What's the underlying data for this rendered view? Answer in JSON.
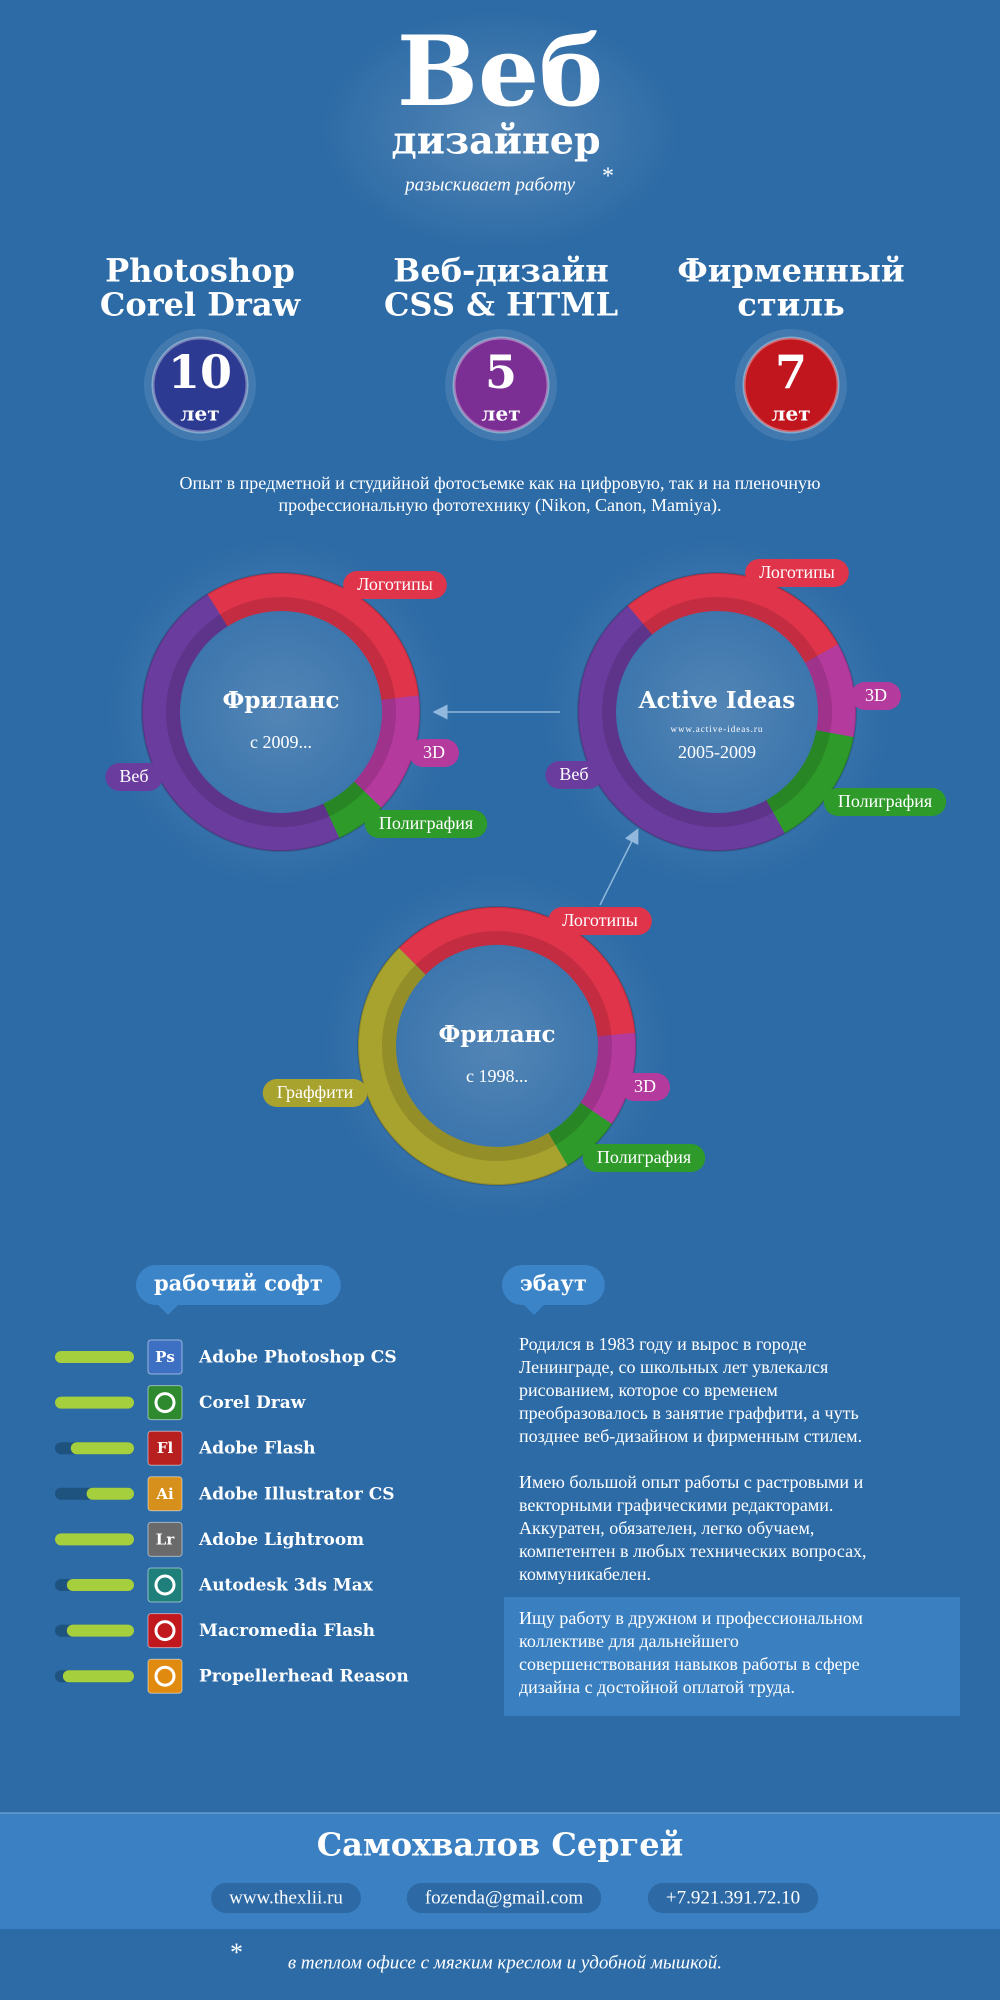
{
  "header": {
    "title": "Веб",
    "subtitle": "дизайнер",
    "tagline": "разыскивает работу",
    "asterisk": "*"
  },
  "experience": [
    {
      "lines": [
        "Photoshop",
        "Corel Draw"
      ],
      "years": 10,
      "unit": "лет",
      "color": "#2c3a92"
    },
    {
      "lines": [
        "Веб-дизайн",
        "CSS & HTML"
      ],
      "years": 5,
      "unit": "лет",
      "color": "#7b2f95"
    },
    {
      "lines": [
        "Фирменный",
        "стиль"
      ],
      "years": 7,
      "unit": "лет",
      "color": "#c2161f"
    }
  ],
  "note": [
    "Опыт в предметной и студийной фотосъемке как на цифровую, так и на пленочную",
    "профессиональную фототехнику (Nikon, Canon, Mamiya)."
  ],
  "donuts": [
    {
      "title": "Фриланс",
      "subtitle": "с 2009...",
      "segments": [
        {
          "name": "Логотипы",
          "value": 32,
          "color": "#e0344a"
        },
        {
          "name": "3D",
          "value": 14,
          "color": "#b53a9e"
        },
        {
          "name": "Полиграфия",
          "value": 6,
          "color": "#2e9a2a"
        },
        {
          "name": "Веб",
          "value": 48,
          "color": "#6a3c9e"
        }
      ]
    },
    {
      "title": "Active Ideas",
      "url": "www.active-ideas.ru",
      "subtitle": "2005-2009",
      "segments": [
        {
          "name": "Логотипы",
          "value": 28,
          "color": "#e0344a"
        },
        {
          "name": "3D",
          "value": 11,
          "color": "#b53a9e"
        },
        {
          "name": "Полиграфия",
          "value": 14,
          "color": "#2e9a2a"
        },
        {
          "name": "Веб",
          "value": 47,
          "color": "#6a3c9e"
        }
      ]
    },
    {
      "title": "Фриланс",
      "subtitle": "с 1998...",
      "segments": [
        {
          "name": "Логотипы",
          "value": 36,
          "color": "#e0344a"
        },
        {
          "name": "3D",
          "value": 11,
          "color": "#b53a9e"
        },
        {
          "name": "Полиграфия",
          "value": 7,
          "color": "#2e9a2a"
        },
        {
          "name": "Граффити",
          "value": 46,
          "color": "#a8a22e"
        }
      ]
    }
  ],
  "software": {
    "heading": "рабочий софт",
    "items": [
      {
        "name": "Adobe Photoshop CS",
        "icon": "Ps",
        "color": "#3d6fc2",
        "level": 100
      },
      {
        "name": "Corel Draw",
        "color": "#2f8a2f",
        "level": 100
      },
      {
        "name": "Adobe Flash",
        "icon": "Fl",
        "color": "#b82020",
        "level": 80
      },
      {
        "name": "Adobe Illustrator CS",
        "icon": "Ai",
        "color": "#d8901c",
        "level": 60
      },
      {
        "name": "Adobe Lightroom",
        "icon": "Lr",
        "color": "#6a6a6a",
        "level": 100
      },
      {
        "name": "Autodesk 3ds Max",
        "color": "#1f7f7a",
        "level": 85
      },
      {
        "name": "Macromedia Flash",
        "color": "#c0181c",
        "level": 85
      },
      {
        "name": "Propellerhead Reason",
        "color": "#e08a10",
        "level": 90
      }
    ]
  },
  "about": {
    "heading": "эбаут",
    "paragraphs": [
      [
        "Родился в 1983 году и вырос в городе",
        "Ленинграде, со школьных лет увлекался",
        "рисованием, которое со временем",
        "преобразовалось в занятие граффити, а чуть",
        "позднее веб-дизайном и фирменным стилем."
      ],
      [
        "Имею большой опыт работы с растровыми и",
        "векторными графическими редакторами.",
        "Аккуратен, обязателен, легко обучаем,",
        "компетентен в любых технических вопросах,",
        "коммуникабелен."
      ]
    ],
    "highlight": [
      "Ищу работу в дружном и профессиональном",
      "коллективе для дальнейшего",
      "совершенствования навыков работы в сфере",
      "дизайна с достойной оплатой труда."
    ]
  },
  "footer": {
    "name": "Самохвалов Сергей",
    "contacts": [
      "www.thexlii.ru",
      "fozenda@gmail.com",
      "+7.921.391.72.10"
    ],
    "asterisk": "*",
    "footnote": "в теплом офисе с мягким креслом и удобной мышкой."
  }
}
